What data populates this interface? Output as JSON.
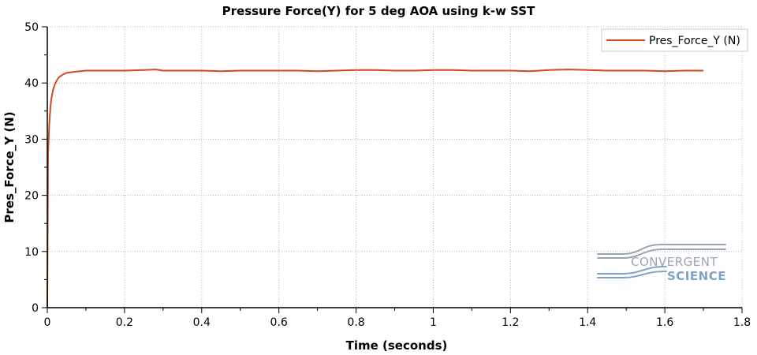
{
  "colors": {
    "series": "#d14a1e",
    "axis": "#000000",
    "grid": "#b8b8b8",
    "logo_blue": "#7fa3c8",
    "logo_dark": "#98a6b4"
  },
  "logo": {
    "line1": "CONVERGENT",
    "line2": "SCIENCE"
  },
  "chart_data": {
    "type": "line",
    "title": "Pressure Force(Y) for 5 deg AOA using k-w SST",
    "xlabel": "Time (seconds)",
    "ylabel": "Pres_Force_Y (N)",
    "xlim": [
      0,
      1.8
    ],
    "ylim": [
      0,
      50
    ],
    "xticks": [
      0,
      0.2,
      0.4,
      0.6,
      0.8,
      1,
      1.2,
      1.4,
      1.6,
      1.8
    ],
    "xtick_labels": [
      "0",
      "0.2",
      "0.4",
      "0.6",
      "0.8",
      "1",
      "1.2",
      "1.4",
      "1.6",
      "1.8"
    ],
    "yticks": [
      0,
      10,
      20,
      30,
      40,
      50
    ],
    "ytick_labels": [
      "0",
      "10",
      "20",
      "30",
      "40",
      "50"
    ],
    "grid": true,
    "legend_position": "top-right",
    "series": [
      {
        "name": "Pres_Force_Y (N)",
        "x": [
          0,
          0.002,
          0.005,
          0.008,
          0.01,
          0.015,
          0.02,
          0.025,
          0.03,
          0.04,
          0.05,
          0.07,
          0.1,
          0.15,
          0.2,
          0.25,
          0.28,
          0.3,
          0.35,
          0.4,
          0.45,
          0.5,
          0.55,
          0.6,
          0.65,
          0.7,
          0.75,
          0.8,
          0.85,
          0.9,
          0.95,
          1.0,
          1.05,
          1.1,
          1.15,
          1.2,
          1.25,
          1.3,
          1.35,
          1.4,
          1.45,
          1.5,
          1.55,
          1.6,
          1.65,
          1.7
        ],
        "y": [
          0,
          27.5,
          32.5,
          35.5,
          37.0,
          38.8,
          39.8,
          40.5,
          41.0,
          41.5,
          41.8,
          42.0,
          42.2,
          42.2,
          42.2,
          42.3,
          42.4,
          42.2,
          42.2,
          42.2,
          42.1,
          42.2,
          42.2,
          42.2,
          42.2,
          42.1,
          42.2,
          42.3,
          42.3,
          42.2,
          42.2,
          42.3,
          42.3,
          42.2,
          42.2,
          42.2,
          42.1,
          42.3,
          42.4,
          42.3,
          42.2,
          42.2,
          42.2,
          42.1,
          42.2,
          42.2
        ]
      }
    ]
  }
}
